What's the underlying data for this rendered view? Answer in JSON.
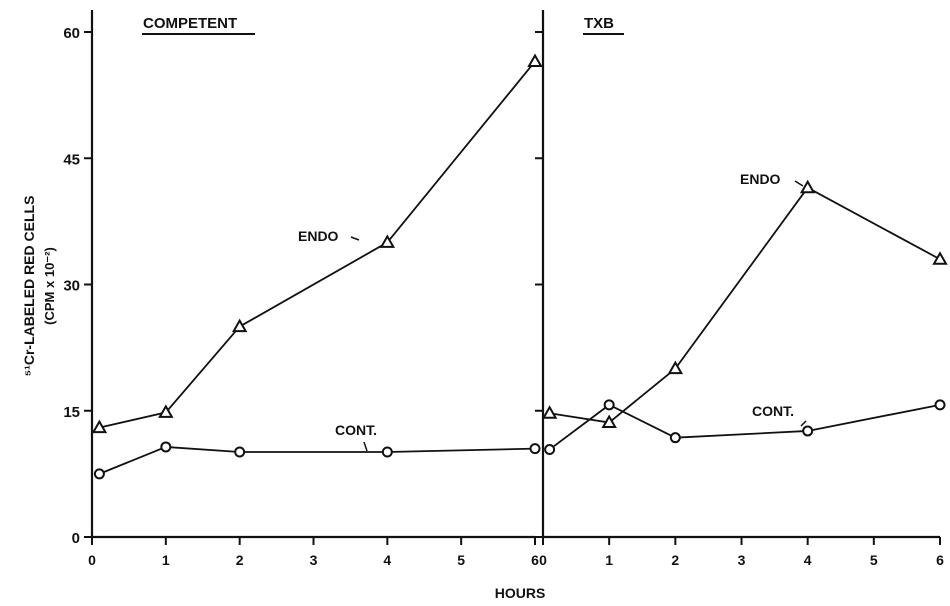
{
  "chart_data": [
    {
      "type": "line",
      "title": "COMPETENT",
      "ylabel_line1": "⁵¹Cr-LABELED RED CELLS",
      "ylabel_line2": "(CPM x 10⁻²)",
      "xlim": [
        0,
        6
      ],
      "ylim": [
        0,
        60
      ],
      "x_ticks": [
        0,
        1,
        2,
        3,
        4,
        5,
        6
      ],
      "y_ticks": [
        0,
        15,
        30,
        45,
        60
      ],
      "series": [
        {
          "name": "ENDO",
          "marker": "triangle",
          "x": [
            0.1,
            1,
            2,
            4,
            6
          ],
          "y": [
            13,
            14.8,
            25,
            35,
            56.5
          ]
        },
        {
          "name": "CONT.",
          "marker": "circle",
          "x": [
            0.1,
            1,
            2,
            4,
            6
          ],
          "y": [
            7.5,
            10.7,
            10.1,
            10.1,
            10.5
          ]
        }
      ]
    },
    {
      "type": "line",
      "title": "TXB",
      "xlim": [
        0,
        6
      ],
      "ylim": [
        0,
        60
      ],
      "x_ticks": [
        0,
        1,
        2,
        3,
        4,
        5,
        6
      ],
      "y_ticks": [
        0,
        15,
        30,
        45,
        60
      ],
      "series": [
        {
          "name": "ENDO",
          "marker": "triangle",
          "x": [
            0.1,
            1,
            2,
            4,
            6
          ],
          "y": [
            14.7,
            13.6,
            20,
            41.5,
            33
          ]
        },
        {
          "name": "CONT.",
          "marker": "circle",
          "x": [
            0.1,
            1,
            2,
            4,
            6
          ],
          "y": [
            10.4,
            15.7,
            11.8,
            12.6,
            15.7
          ]
        }
      ]
    }
  ],
  "xlabel": "HOURS"
}
